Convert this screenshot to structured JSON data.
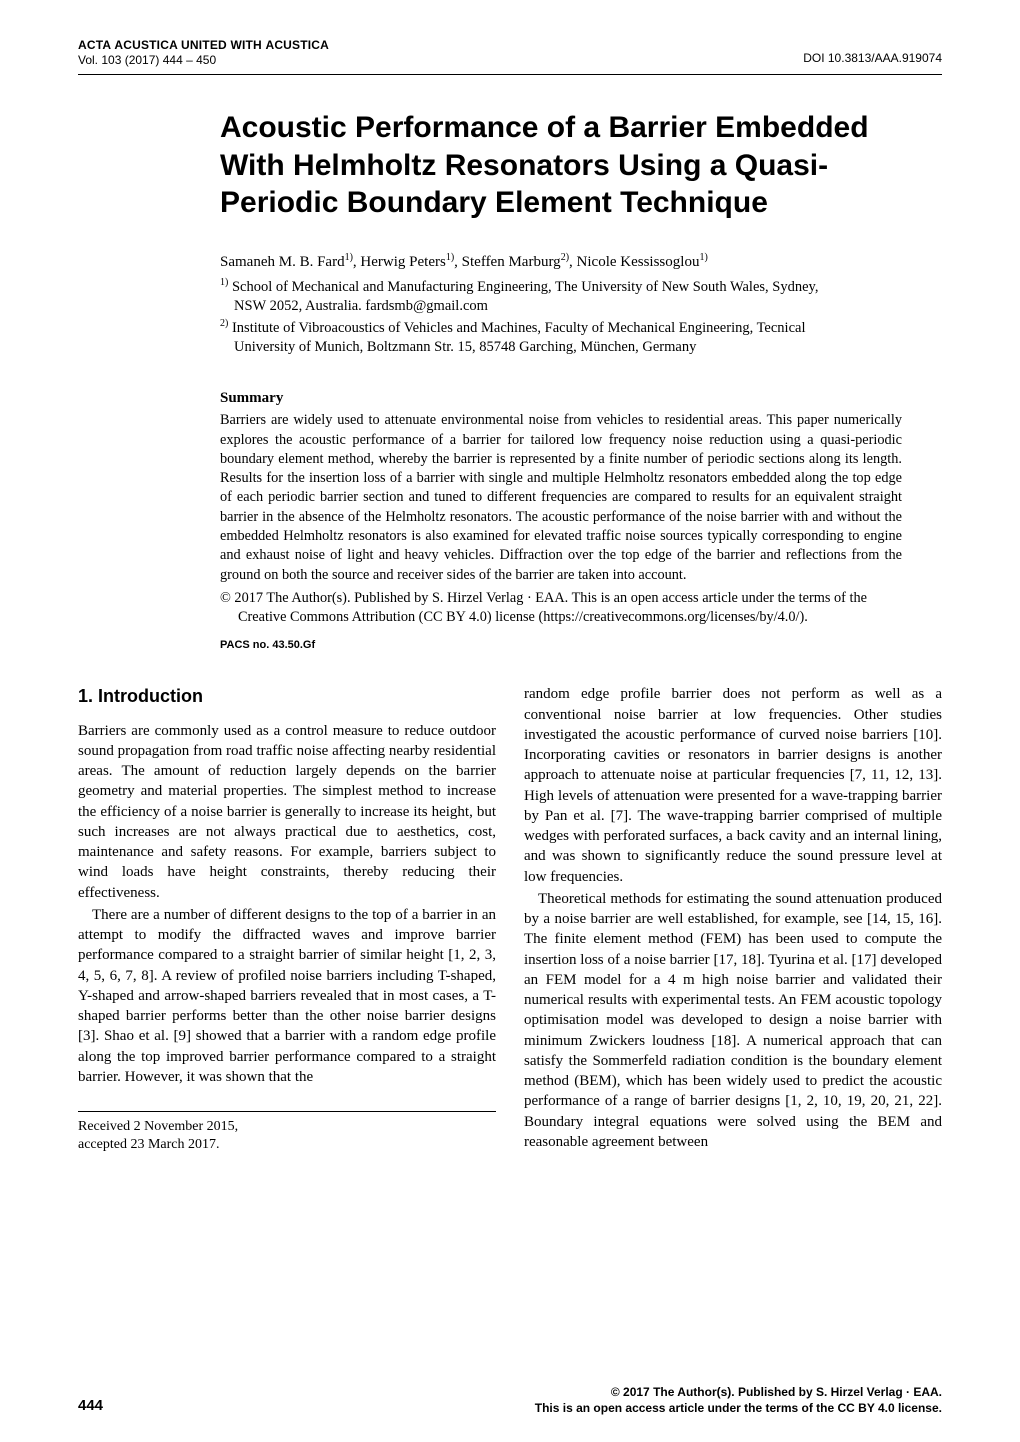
{
  "header": {
    "journal_line1_a": "A",
    "journal_line1_b": "CTA ",
    "journal_line1_c": "A",
    "journal_line1_d": "CUSTICA UNITED WITH ",
    "journal_line1_e": "A",
    "journal_line1_f": "CUSTICA",
    "vol_line": "Vol. 103 (2017) 444 – 450",
    "doi": "DOI 10.3813/AAA.919074"
  },
  "title": "Acoustic Performance of a Barrier Embedded With Helmholtz Resonators Using a Quasi-Periodic Boundary Element Technique",
  "authors_html": "Samaneh M. B. Fard{1}, Herwig Peters{1}, Steffen Marburg{2}, Nicole Kessissoglou{1}",
  "authors": {
    "line": "Samaneh M. B. Fard",
    "a1_sup": "1)",
    "sep1": ", Herwig Peters",
    "a2_sup": "1)",
    "sep2": ", Steffen Marburg",
    "a3_sup": "2)",
    "sep3": ", Nicole Kessissoglou",
    "a4_sup": "1)"
  },
  "affiliations": [
    {
      "sup": "1)",
      "text_a": " School of Mechanical and Manufacturing Engineering, The University of New South Wales, Sydney,",
      "text_b": "NSW 2052, Australia. fardsmb@gmail.com"
    },
    {
      "sup": "2)",
      "text_a": " Institute of Vibroacoustics of Vehicles and Machines, Faculty of Mechanical Engineering, Tecnical",
      "text_b": "University of Munich, Boltzmann Str. 15, 85748 Garching, München, Germany"
    }
  ],
  "summary": {
    "head": "Summary",
    "body": "Barriers are widely used to attenuate environmental noise from vehicles to residential areas. This paper numerically explores the acoustic performance of a barrier for tailored low frequency noise reduction using a quasi-periodic boundary element method, whereby the barrier is represented by a finite number of periodic sections along its length. Results for the insertion loss of a barrier with single and multiple Helmholtz resonators embedded along the top edge of each periodic barrier section and tuned to different frequencies are compared to results for an equivalent straight barrier in the absence of the Helmholtz resonators. The acoustic performance of the noise barrier with and without the embedded Helmholtz resonators is also examined for elevated traffic noise sources typically corresponding to engine and exhaust noise of light and heavy vehicles. Diffraction over the top edge of the barrier and reflections from the ground on both the source and receiver sides of the barrier are taken into account.",
    "copyright_a": "© 2017 The Author(s). Published by S. Hirzel Verlag · EAA. This is an open access article under the terms of the",
    "copyright_b": "Creative Commons Attribution (CC BY 4.0) license (https://creativecommons.org/licenses/by/4.0/).",
    "pacs": "PACS no. 43.50.Gf"
  },
  "section1_title": "1.  Introduction",
  "col_left": {
    "p1": "Barriers are commonly used as a control measure to reduce outdoor sound propagation from road traffic noise affecting nearby residential areas. The amount of reduction largely depends on the barrier geometry and material properties. The simplest method to increase the efficiency of a noise barrier is generally to increase its height, but such increases are not always practical due to aesthetics, cost, maintenance and safety reasons. For example, barriers subject to wind loads have height constraints, thereby reducing their effectiveness.",
    "p2": "There are a number of different designs to the top of a barrier in an attempt to modify the diffracted waves and improve barrier performance compared to a straight barrier of similar height [1, 2, 3, 4, 5, 6, 7, 8]. A review of profiled noise barriers including T-shaped, Y-shaped and arrow-shaped barriers revealed that in most cases, a T-shaped barrier performs better than the other noise barrier designs [3]. Shao et al. [9] showed that a barrier with a random edge profile along the top improved barrier performance compared to a straight barrier. However, it was shown that the",
    "received1": "Received  2 November 2015,",
    "received2": "accepted 23 March 2017."
  },
  "col_right": {
    "p1": "random edge profile barrier does not perform as well as a conventional noise barrier at low frequencies. Other studies investigated the acoustic performance of curved noise barriers [10]. Incorporating cavities or resonators in barrier designs is another approach to attenuate noise at particular frequencies [7, 11, 12, 13]. High levels of attenuation were presented for a wave-trapping barrier by Pan et al. [7]. The wave-trapping barrier comprised of multiple wedges with perforated surfaces, a back cavity and an internal lining, and was shown to significantly reduce the sound pressure level at low frequencies.",
    "p2": "Theoretical methods for estimating the sound attenuation produced by a noise barrier are well established, for example, see [14, 15, 16]. The finite element method (FEM) has been used to compute the insertion loss of a noise barrier [17, 18]. Tyurina et al. [17] developed an FEM model for a 4 m high noise barrier and validated their numerical results with experimental tests. An FEM acoustic topology optimisation model was developed to design a noise barrier with minimum Zwickers loudness [18]. A numerical approach that can satisfy the Sommerfeld radiation condition is the boundary element method (BEM), which has been widely used to predict the acoustic performance of a range of barrier designs [1, 2, 10, 19, 20, 21, 22]. Boundary integral equations were solved using the BEM and reasonable agreement between"
  },
  "footer": {
    "page_number": "444",
    "copy1": "© 2017 The Author(s). Published by S. Hirzel Verlag · EAA.",
    "copy2": "This is an open access article under the terms of the CC BY 4.0 license."
  }
}
